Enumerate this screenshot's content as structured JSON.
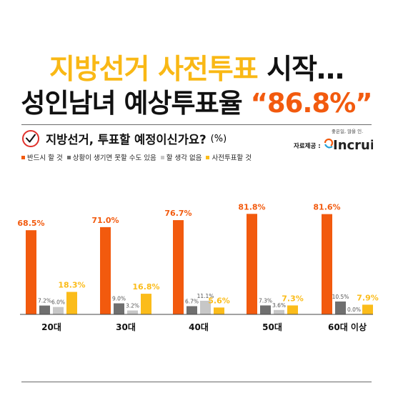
{
  "headline": {
    "line1_part1": "지방선거 사전투표",
    "line1_part2": "시작…",
    "line2_part1": "성인남녀 예상투표율",
    "line2_part2": "“86.8%”"
  },
  "question": {
    "text": "지방선거, 투표할 예정이신가요?",
    "unit": "(%)"
  },
  "provider": {
    "label": "자료제공 :",
    "tagline": "좋은일, 많을 인.",
    "logo_text": "Incruit"
  },
  "colors": {
    "headline_yellow": "#f9b815",
    "headline_orange": "#f25a0e",
    "series_must": "#f25a0e",
    "series_maybe_not": "#6f6f6f",
    "series_no_plan": "#c7c7c7",
    "series_early": "#fbbc1a"
  },
  "chart_data": {
    "type": "bar",
    "categories": [
      "20대",
      "30대",
      "40대",
      "50대",
      "60대 이상"
    ],
    "ylim": [
      0,
      100
    ],
    "series": [
      {
        "name": "반드시 할 것",
        "color": "#f25a0e",
        "values": [
          68.5,
          71.0,
          76.7,
          81.8,
          81.6
        ],
        "labels": [
          "68.5%",
          "71.0%",
          "76.7%",
          "81.8%",
          "81.6%"
        ]
      },
      {
        "name": "상황이 생기면 못할 수도 있음",
        "color": "#6f6f6f",
        "values": [
          7.2,
          9.0,
          6.7,
          7.3,
          10.5
        ],
        "labels": [
          "7.2%",
          "9.0%",
          "6.7%",
          "7.3%",
          "10.5%"
        ]
      },
      {
        "name": "할 생각 없음",
        "color": "#c7c7c7",
        "values": [
          6.0,
          3.2,
          11.1,
          3.6,
          0.0
        ],
        "labels": [
          "6.0%",
          "3.2%",
          "11.1%",
          "3.6%",
          "0.0%"
        ]
      },
      {
        "name": "사전투표할 것",
        "color": "#fbbc1a",
        "values": [
          18.3,
          16.8,
          5.6,
          7.3,
          7.9
        ],
        "labels": [
          "18.3%",
          "16.8%",
          "5.6%",
          "7.3%",
          "7.9%"
        ]
      }
    ]
  }
}
